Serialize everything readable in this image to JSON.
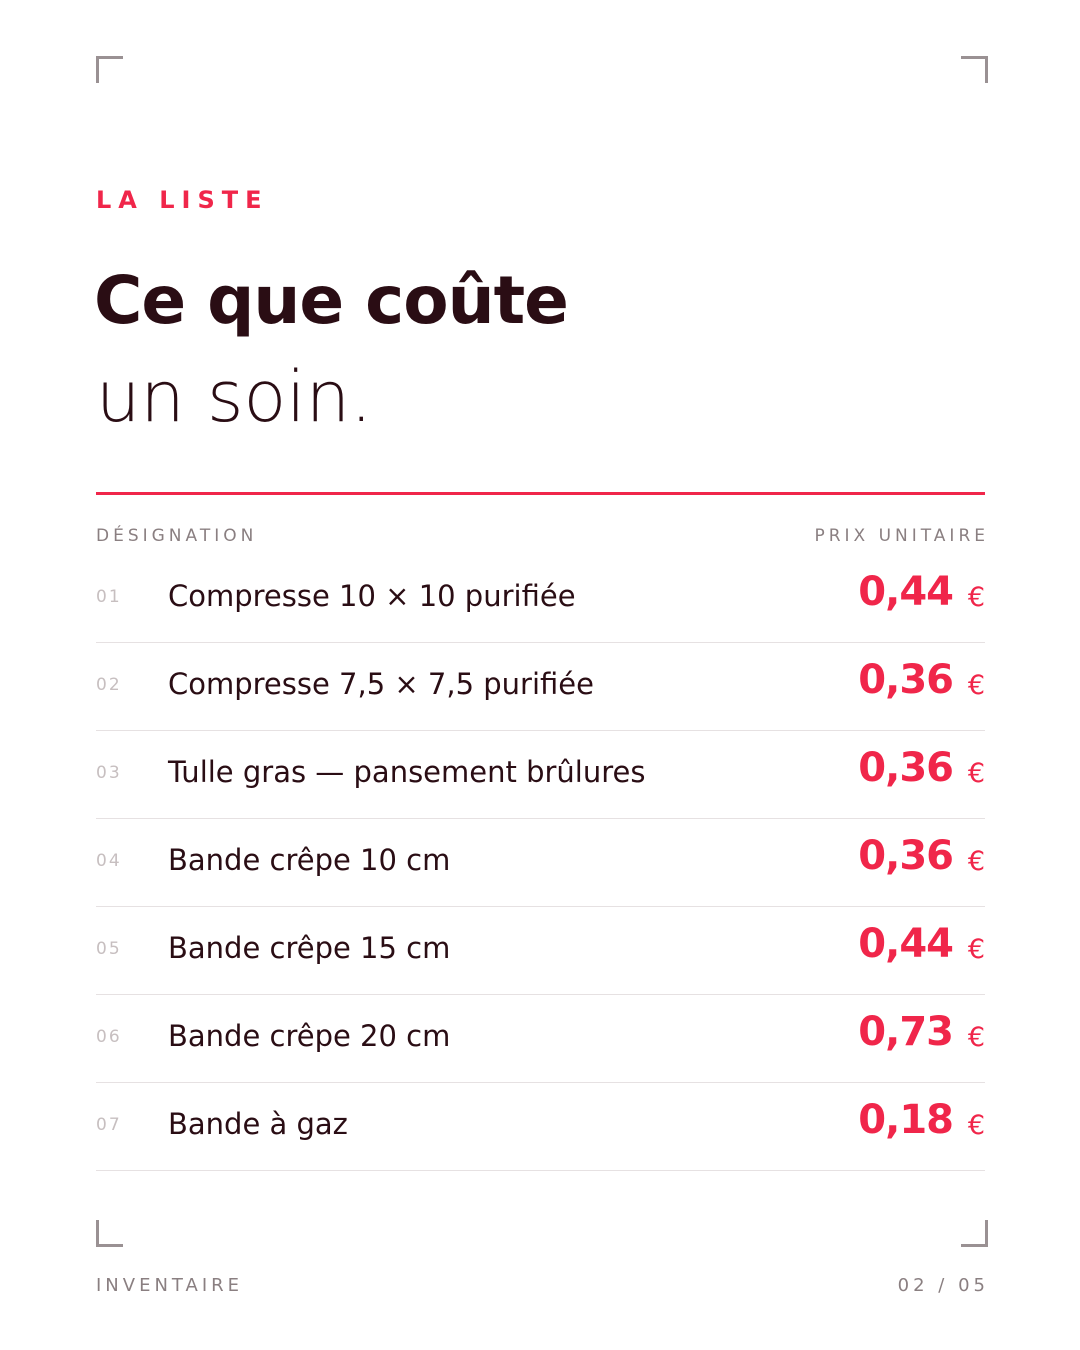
{
  "header": {
    "eyebrow": "LA LISTE",
    "title_bold": "Ce que coûte",
    "title_light": "un soin."
  },
  "table": {
    "columns": [
      "DÉSIGNATION",
      "PRIX UNITAIRE"
    ],
    "rows": [
      {
        "index": "01",
        "label": "Compresse 10 × 10 purifiée",
        "price": "0,44",
        "currency": "€"
      },
      {
        "index": "02",
        "label": "Compresse 7,5 × 7,5 purifiée",
        "price": "0,36",
        "currency": "€"
      },
      {
        "index": "03",
        "label": "Tulle gras — pansement brûlures",
        "price": "0,36",
        "currency": "€"
      },
      {
        "index": "04",
        "label": "Bande crêpe 10 cm",
        "price": "0,36",
        "currency": "€"
      },
      {
        "index": "05",
        "label": "Bande crêpe 15 cm",
        "price": "0,44",
        "currency": "€"
      },
      {
        "index": "06",
        "label": "Bande crêpe 20 cm",
        "price": "0,73",
        "currency": "€"
      },
      {
        "index": "07",
        "label": "Bande à gaz",
        "price": "0,18",
        "currency": "€"
      }
    ]
  },
  "footer": {
    "left": "INVENTAIRE",
    "right": "02 / 05"
  }
}
